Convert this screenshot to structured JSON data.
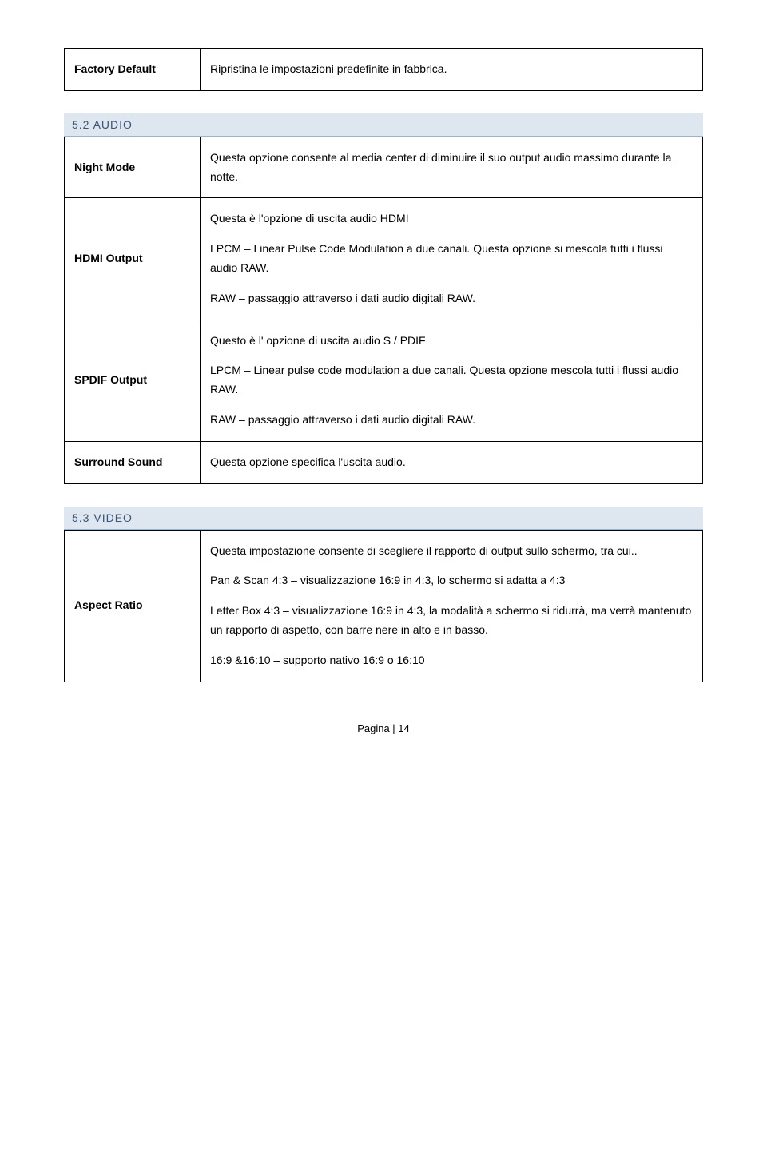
{
  "table1": {
    "rows": [
      {
        "label": "Factory Default",
        "desc": "Ripristina le impostazioni predefinite in fabbrica."
      }
    ]
  },
  "section_audio": {
    "title": "5.2 AUDIO",
    "rows": [
      {
        "label": "Night Mode",
        "paras": [
          "Questa opzione consente al media center di diminuire il suo output audio massimo durante la notte."
        ]
      },
      {
        "label": "HDMI Output",
        "paras": [
          "Questa è l'opzione di uscita audio HDMI",
          "LPCM – Linear Pulse Code Modulation a due canali. Questa opzione si mescola tutti i flussi audio RAW.",
          "RAW – passaggio attraverso i dati audio digitali RAW."
        ]
      },
      {
        "label": "SPDIF Output",
        "paras": [
          "Questo è l' opzione di uscita audio S / PDIF",
          "LPCM – Linear pulse code modulation a due canali. Questa opzione mescola tutti i flussi audio RAW.",
          "RAW – passaggio attraverso i dati audio digitali RAW."
        ]
      },
      {
        "label": "Surround Sound",
        "paras": [
          "Questa opzione specifica l'uscita audio."
        ]
      }
    ]
  },
  "section_video": {
    "title": "5.3 VIDEO",
    "rows": [
      {
        "label": "Aspect Ratio",
        "paras": [
          "Questa impostazione consente di scegliere il rapporto di output sullo schermo, tra cui..",
          "Pan & Scan 4:3 – visualizzazione 16:9 in 4:3, lo schermo si adatta a 4:3",
          "Letter Box 4:3 – visualizzazione 16:9 in 4:3, la modalità a schermo si ridurrà, ma verrà mantenuto un rapporto di aspetto, con barre nere in alto e in basso.",
          "16:9 &16:10 – supporto nativo 16:9 o 16:10"
        ]
      }
    ]
  },
  "footer": "Pagina | 14",
  "colors": {
    "heading_bg": "#dee6f0",
    "heading_border": "#9db3cc",
    "heading_text": "#3a5578",
    "border": "#000000",
    "text": "#000000",
    "bg": "#ffffff"
  }
}
